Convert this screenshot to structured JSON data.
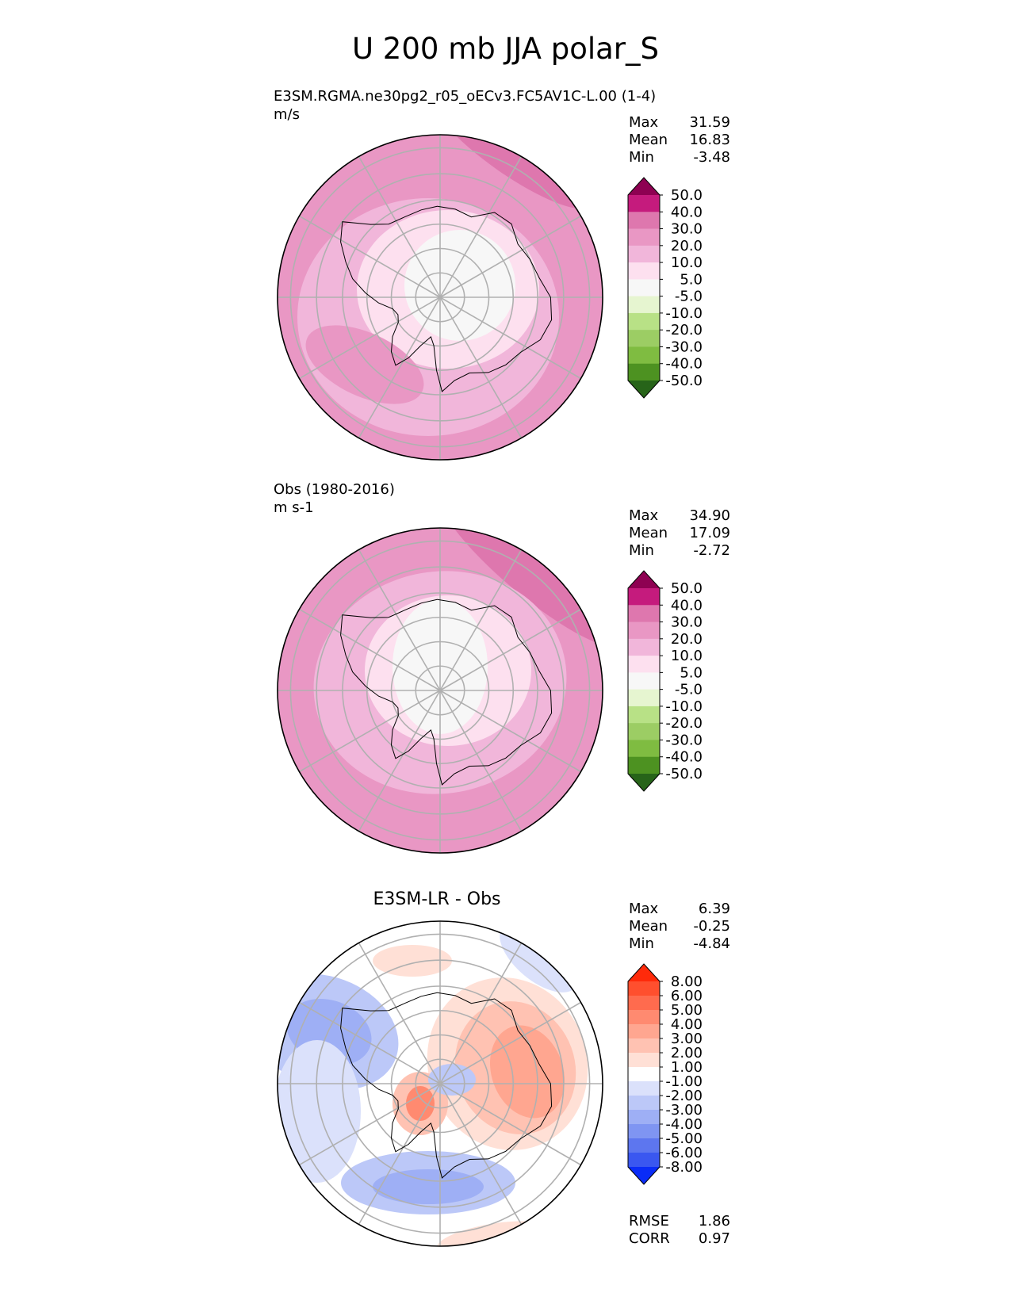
{
  "title": "U 200 mb JJA polar_S",
  "chart_data": [
    {
      "type": "heatmap",
      "projection": "south-polar-stereographic",
      "title": "E3SM.RGMA.ne30pg2_r05_oECv3.FC5AV1C-L.00 (1-4)",
      "units": "m/s",
      "stats": [
        {
          "label": "Max",
          "value": "31.59"
        },
        {
          "label": "Mean",
          "value": "16.83"
        },
        {
          "label": "Min",
          "value": "-3.48"
        }
      ],
      "colorbar": {
        "levels": [
          "50.0",
          "40.0",
          "30.0",
          "20.0",
          "10.0",
          "5.0",
          "-5.0",
          "-10.0",
          "-20.0",
          "-30.0",
          "-40.0",
          "-50.0"
        ],
        "colors": [
          "#8e0152",
          "#c51b7d",
          "#de77ae",
          "#e997c4",
          "#f1b6da",
          "#fde0ef",
          "#f7f7f7",
          "#e6f5d0",
          "#b8e186",
          "#9ccd64",
          "#7fbc41",
          "#4d9221",
          "#276419"
        ],
        "extend": "both"
      }
    },
    {
      "type": "heatmap",
      "projection": "south-polar-stereographic",
      "title": "Obs (1980-2016)",
      "units": "m s-1",
      "stats": [
        {
          "label": "Max",
          "value": "34.90"
        },
        {
          "label": "Mean",
          "value": "17.09"
        },
        {
          "label": "Min",
          "value": "-2.72"
        }
      ],
      "colorbar": {
        "levels": [
          "50.0",
          "40.0",
          "30.0",
          "20.0",
          "10.0",
          "5.0",
          "-5.0",
          "-10.0",
          "-20.0",
          "-30.0",
          "-40.0",
          "-50.0"
        ],
        "colors": [
          "#8e0152",
          "#c51b7d",
          "#de77ae",
          "#e997c4",
          "#f1b6da",
          "#fde0ef",
          "#f7f7f7",
          "#e6f5d0",
          "#b8e186",
          "#9ccd64",
          "#7fbc41",
          "#4d9221",
          "#276419"
        ],
        "extend": "both"
      }
    },
    {
      "type": "heatmap",
      "projection": "south-polar-stereographic",
      "title": "E3SM-LR - Obs",
      "units": "",
      "stats": [
        {
          "label": "Max",
          "value": "6.39"
        },
        {
          "label": "Mean",
          "value": "-0.25"
        },
        {
          "label": "Min",
          "value": "-4.84"
        }
      ],
      "metrics": [
        {
          "label": "RMSE",
          "value": "1.86"
        },
        {
          "label": "CORR",
          "value": "0.97"
        }
      ],
      "colorbar": {
        "levels": [
          "8.00",
          "6.00",
          "5.00",
          "4.00",
          "3.00",
          "2.00",
          "1.00",
          "-1.00",
          "-2.00",
          "-3.00",
          "-4.00",
          "-5.00",
          "-6.00",
          "-8.00"
        ],
        "colors": [
          "#ff2a0a",
          "#ff4f2e",
          "#ff6b4e",
          "#ff8a70",
          "#ffa690",
          "#ffc2b2",
          "#ffe0d6",
          "#ffffff",
          "#dbe1fb",
          "#bcc8f8",
          "#9eaff5",
          "#7f95f2",
          "#5d76ef",
          "#3a57f0",
          "#0a2cf7"
        ],
        "extend": "both"
      }
    }
  ]
}
